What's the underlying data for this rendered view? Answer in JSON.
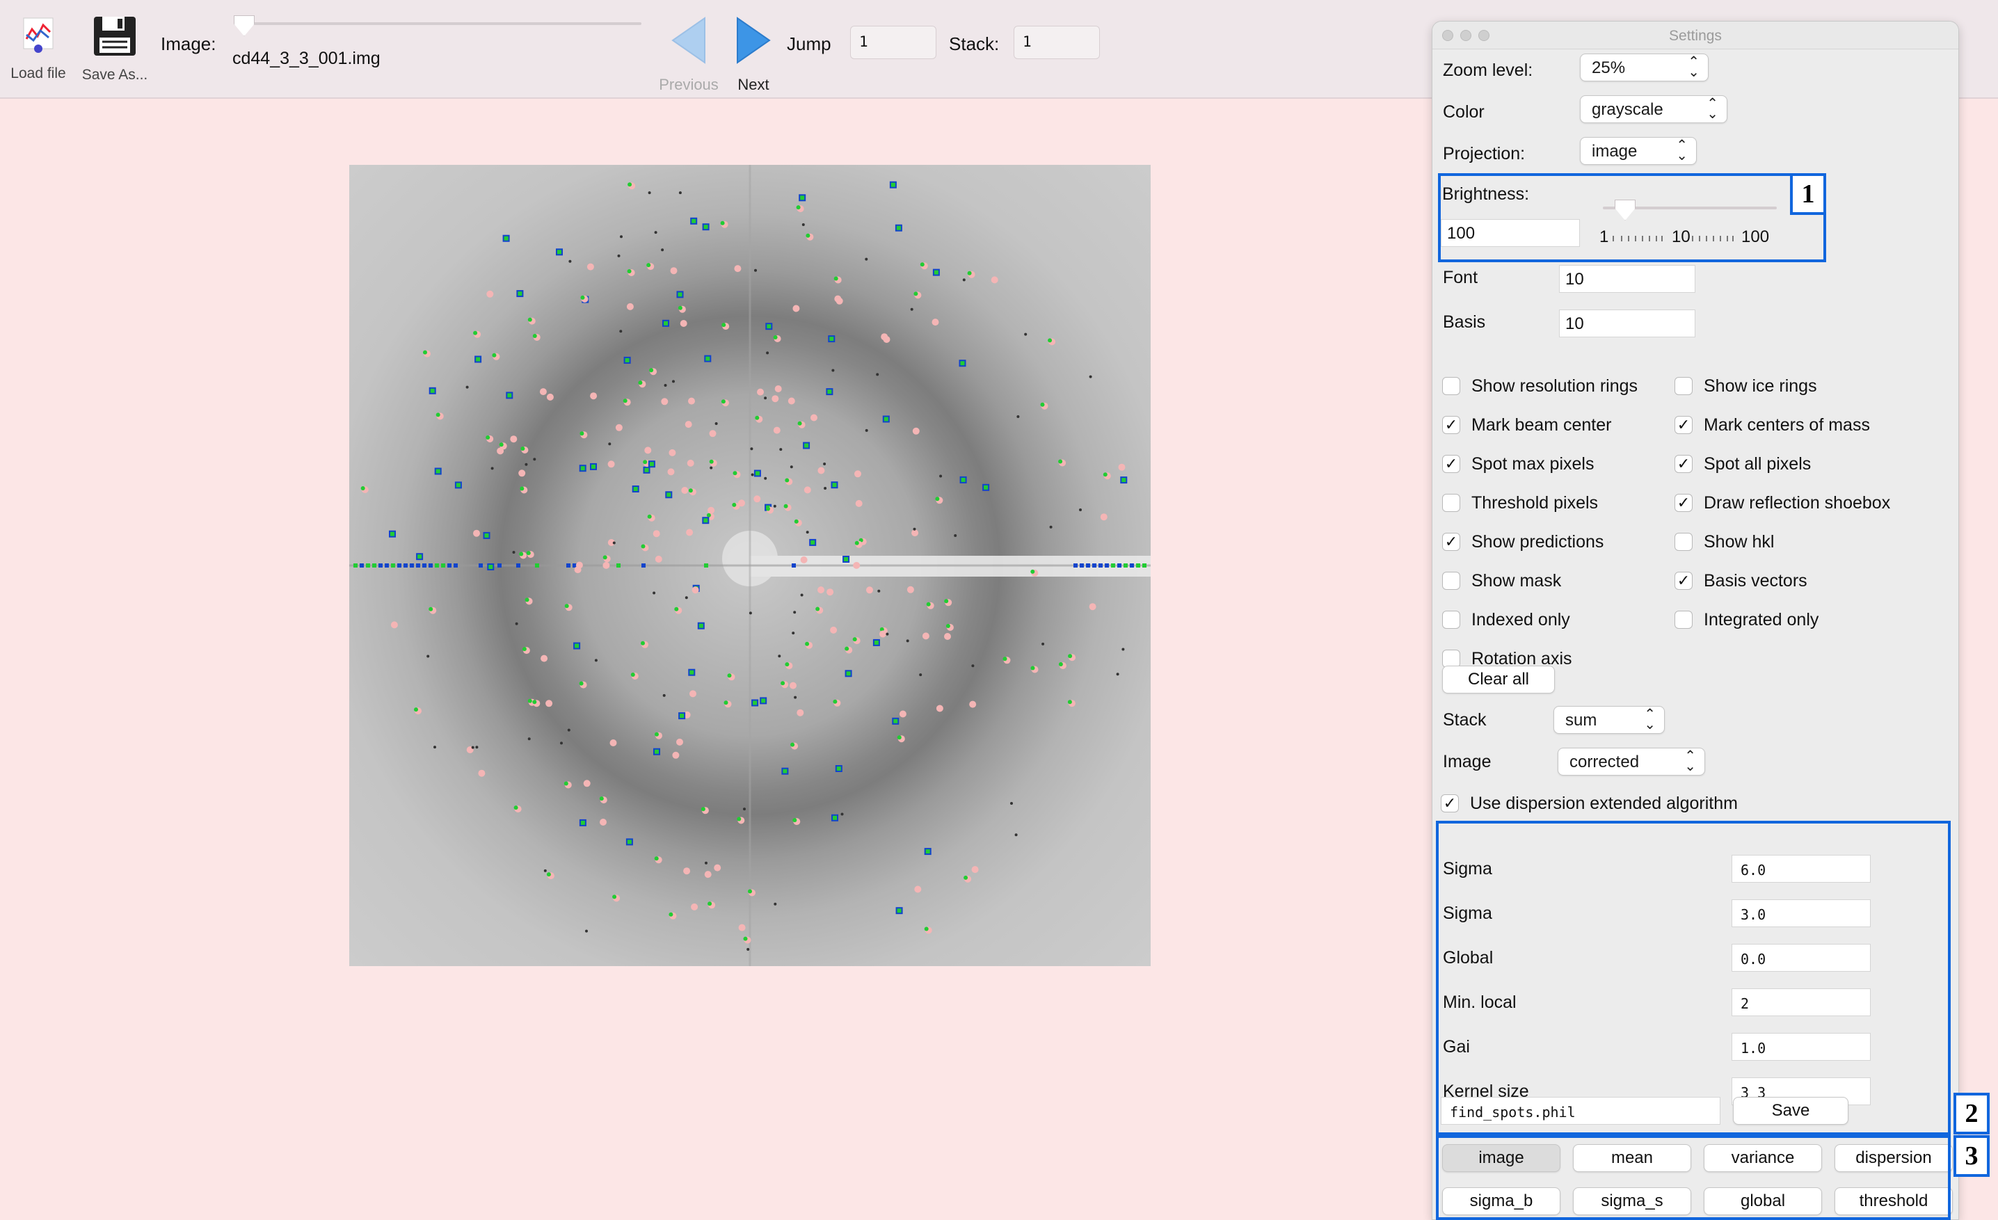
{
  "toolbar": {
    "load_label": "Load file",
    "save_as_label": "Save As...",
    "image_label": "Image:",
    "image_filename": "cd44_3_3_001.img",
    "previous_label": "Previous",
    "next_label": "Next",
    "jump_label": "Jump",
    "jump_value": "1",
    "stack_label": "Stack:",
    "stack_value": "1",
    "image_slider_position": 0.0
  },
  "settings": {
    "window_title": "Settings",
    "zoom_label": "Zoom level:",
    "zoom_value": "25%",
    "color_label": "Color",
    "color_value": "grayscale",
    "projection_label": "Projection:",
    "projection_value": "image",
    "brightness_label": "Brightness:",
    "brightness_value": "100",
    "brightness_ticks": [
      "1",
      "10",
      "100"
    ],
    "font_label": "Font",
    "font_value": "10",
    "basis_label": "Basis",
    "basis_value": "10",
    "checkboxes": [
      {
        "label": "Show resolution rings",
        "checked": false
      },
      {
        "label": "Show ice rings",
        "checked": false
      },
      {
        "label": "Mark beam center",
        "checked": true
      },
      {
        "label": "Mark centers of mass",
        "checked": true
      },
      {
        "label": "Spot max pixels",
        "checked": true
      },
      {
        "label": "Spot all pixels",
        "checked": true
      },
      {
        "label": "Threshold pixels",
        "checked": false
      },
      {
        "label": "Draw reflection shoebox",
        "checked": true
      },
      {
        "label": "Show predictions",
        "checked": true
      },
      {
        "label": "Show hkl",
        "checked": false
      },
      {
        "label": "Show mask",
        "checked": false
      },
      {
        "label": "Basis vectors",
        "checked": true
      },
      {
        "label": "Indexed only",
        "checked": false
      },
      {
        "label": "Integrated only",
        "checked": false
      },
      {
        "label": "Rotation axis",
        "checked": false
      }
    ],
    "clear_all_label": "Clear all",
    "stack_label": "Stack",
    "stack_value": "sum",
    "image_label": "Image",
    "image_value": "corrected",
    "dispersion_extended": {
      "label": "Use dispersion extended algorithm",
      "checked": true
    },
    "params": [
      {
        "label": "Sigma",
        "value": "6.0"
      },
      {
        "label": "Sigma",
        "value": "3.0"
      },
      {
        "label": "Global",
        "value": "0.0"
      },
      {
        "label": "Min. local",
        "value": "2"
      },
      {
        "label": "Gai",
        "value": "1.0"
      },
      {
        "label": "Kernel size",
        "value": "3 3"
      }
    ],
    "phil_file": "find_spots.phil",
    "save_label": "Save",
    "view_buttons": [
      "image",
      "mean",
      "variance",
      "dispersion",
      "sigma_b",
      "sigma_s",
      "global",
      "threshold"
    ],
    "selected_view": "image"
  },
  "annotations": [
    "1",
    "2",
    "3"
  ],
  "colors": {
    "accent": "#1166dd",
    "background": "#fce6e6",
    "spot_green": "#22cc33",
    "spot_pink": "#f4b5b5",
    "spot_blue": "#1144cc"
  }
}
